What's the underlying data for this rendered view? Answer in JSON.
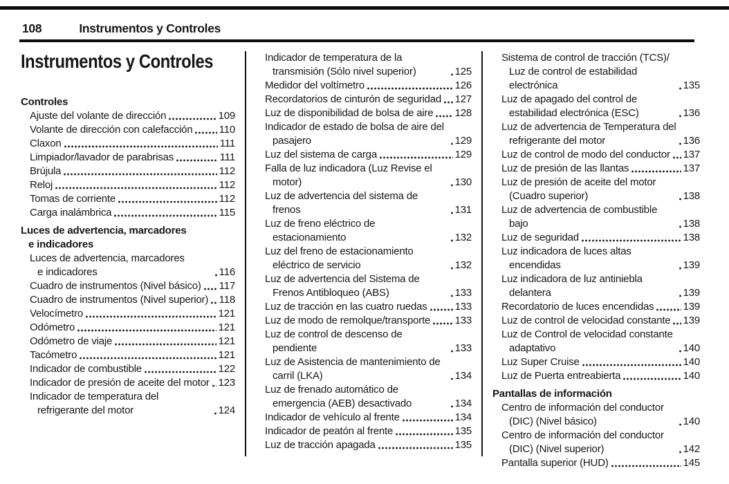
{
  "page": {
    "number": "108",
    "running_title": "Instrumentos y Controles"
  },
  "colors": {
    "ink": "#111111",
    "paper": "#ffffff"
  },
  "columns": [
    {
      "blocks": [
        {
          "type": "chapter_title",
          "text": "Instrumentos y Controles"
        },
        {
          "type": "heading",
          "text": "Controles"
        },
        {
          "type": "entry",
          "text": "Ajuste del volante de dirección",
          "page": "109"
        },
        {
          "type": "entry",
          "text": "Volante de dirección con calefacción",
          "page": "110"
        },
        {
          "type": "entry",
          "text": "Claxon",
          "page": "111"
        },
        {
          "type": "entry",
          "text": "Limpiador/lavador de parabrisas",
          "page": "111"
        },
        {
          "type": "entry",
          "text": "Brújula",
          "page": "112"
        },
        {
          "type": "entry",
          "text": "Reloj",
          "page": "112"
        },
        {
          "type": "entry",
          "text": "Tomas de corriente",
          "page": "112"
        },
        {
          "type": "entry",
          "text": "Carga inalámbrica",
          "page": "115"
        },
        {
          "type": "heading",
          "text": "Luces de advertencia, marcadores e indicadores"
        },
        {
          "type": "entry",
          "text": "Luces de advertencia, marcadores e indicadores",
          "page": "116"
        },
        {
          "type": "entry",
          "text": "Cuadro de instrumentos (Nivel básico)",
          "page": "117"
        },
        {
          "type": "entry",
          "text": "Cuadro de instrumentos (Nivel superior)",
          "page": "118"
        },
        {
          "type": "entry",
          "text": "Velocímetro",
          "page": "121"
        },
        {
          "type": "entry",
          "text": "Odómetro",
          "page": "121"
        },
        {
          "type": "entry",
          "text": "Odómetro de viaje",
          "page": "121"
        },
        {
          "type": "entry",
          "text": "Tacómetro",
          "page": "121"
        },
        {
          "type": "entry",
          "text": "Indicador de combustible",
          "page": "122"
        },
        {
          "type": "entry",
          "text": "Indicador de presión de aceite del motor",
          "page": "123"
        },
        {
          "type": "entry",
          "text": "Indicador de temperatura del refrigerante del motor",
          "page": "124"
        }
      ]
    },
    {
      "blocks": [
        {
          "type": "entry",
          "text": "Indicador de temperatura de la transmisión (Sólo nivel superior)",
          "page": "125"
        },
        {
          "type": "entry",
          "text": "Medidor del voltímetro",
          "page": "126"
        },
        {
          "type": "entry",
          "text": "Recordatorios de cinturón de seguridad",
          "page": "127"
        },
        {
          "type": "entry",
          "text": "Luz de disponibilidad de bolsa de aire",
          "page": "128"
        },
        {
          "type": "entry",
          "text": "Indicador de estado de bolsa de aire del pasajero",
          "page": "129"
        },
        {
          "type": "entry",
          "text": "Luz del sistema de carga",
          "page": "129"
        },
        {
          "type": "entry",
          "text": "Falla de luz indicadora (Luz Revise el motor)",
          "page": "130"
        },
        {
          "type": "entry",
          "text": "Luz de advertencia del sistema de frenos",
          "page": "131"
        },
        {
          "type": "entry",
          "text": "Luz de freno eléctrico de estacionamiento",
          "page": "132"
        },
        {
          "type": "entry",
          "text": "Luz del freno de estacionamiento eléctrico de servicio",
          "page": "132"
        },
        {
          "type": "entry",
          "text": "Luz de advertencia del Sistema de Frenos Antibloqueo (ABS)",
          "page": "133"
        },
        {
          "type": "entry",
          "text": "Luz de tracción en las cuatro ruedas",
          "page": "133"
        },
        {
          "type": "entry",
          "text": "Luz de modo de remolque/transporte",
          "page": "133"
        },
        {
          "type": "entry",
          "text": "Luz de control de descenso de pendiente",
          "page": "133"
        },
        {
          "type": "entry",
          "text": "Luz de Asistencia de mantenimiento de carril (LKA)",
          "page": "134"
        },
        {
          "type": "entry",
          "text": "Luz de frenado automático de emergencia (AEB) desactivado",
          "page": "134"
        },
        {
          "type": "entry",
          "text": "Indicador de vehículo al frente",
          "page": "134"
        },
        {
          "type": "entry",
          "text": "Indicador de peatón al frente",
          "page": "135"
        },
        {
          "type": "entry",
          "text": "Luz de tracción apagada",
          "page": "135"
        }
      ]
    },
    {
      "blocks": [
        {
          "type": "entry",
          "text": "Sistema de control de tracción (TCS)/ Luz de control de estabilidad electrónica",
          "page": "135"
        },
        {
          "type": "entry",
          "text": "Luz de apagado del control de estabilidad electrónica (ESC)",
          "page": "136"
        },
        {
          "type": "entry",
          "text": "Luz de advertencia de Temperatura del refrigerante del motor",
          "page": "136"
        },
        {
          "type": "entry",
          "text": "Luz de control de modo del conductor",
          "page": "137"
        },
        {
          "type": "entry",
          "text": "Luz de presión de las llantas",
          "page": "137"
        },
        {
          "type": "entry",
          "text": "Luz de presión de aceite del motor (Cuadro superior)",
          "page": "138"
        },
        {
          "type": "entry",
          "text": "Luz de advertencia de combustible bajo",
          "page": "138"
        },
        {
          "type": "entry",
          "text": "Luz de seguridad",
          "page": "138"
        },
        {
          "type": "entry",
          "text": "Luz indicadora de luces altas encendidas",
          "page": "139"
        },
        {
          "type": "entry",
          "text": "Luz indicadora de luz antiniebla delantera",
          "page": "139"
        },
        {
          "type": "entry",
          "text": "Recordatorio de luces encendidas",
          "page": "139"
        },
        {
          "type": "entry",
          "text": "Luz de control de velocidad constante",
          "page": "139"
        },
        {
          "type": "entry",
          "text": "Luz de Control de velocidad constante adaptativo",
          "page": "140"
        },
        {
          "type": "entry",
          "text": "Luz Super Cruise",
          "page": "140"
        },
        {
          "type": "entry",
          "text": "Luz de Puerta entreabierta",
          "page": "140"
        },
        {
          "type": "heading",
          "text": "Pantallas de información"
        },
        {
          "type": "entry",
          "text": "Centro de información del conductor (DIC) (Nivel básico)",
          "page": "140"
        },
        {
          "type": "entry",
          "text": "Centro de información del conductor (DIC) (Nivel superior)",
          "page": "142"
        },
        {
          "type": "entry",
          "text": "Pantalla superior (HUD)",
          "page": "145"
        }
      ]
    }
  ]
}
